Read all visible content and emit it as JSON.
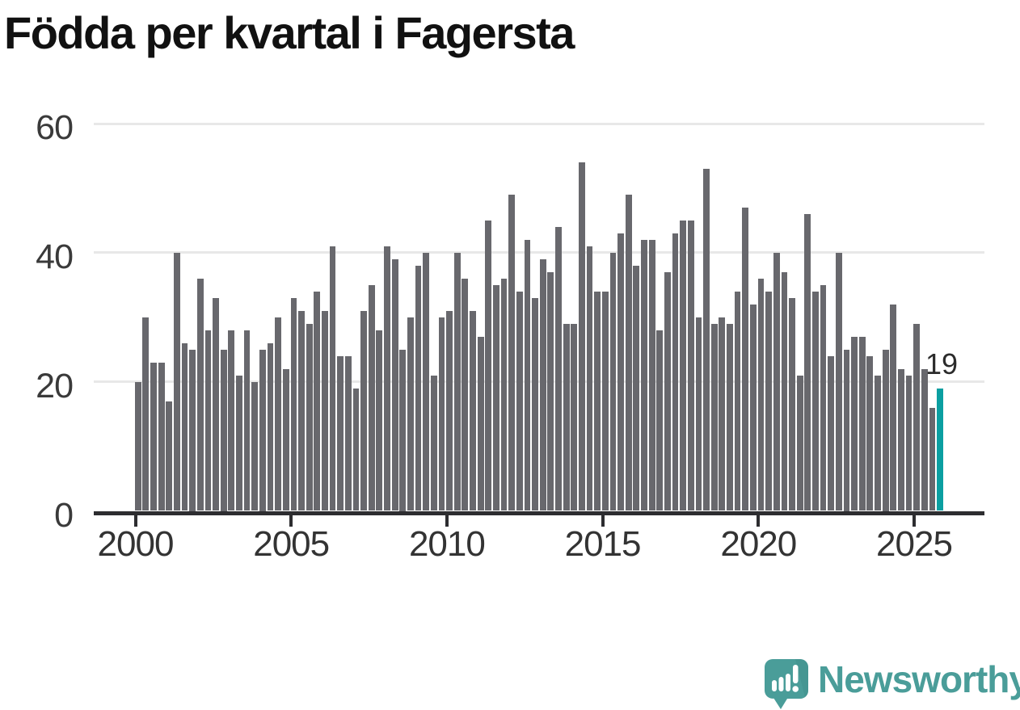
{
  "chart_data": {
    "type": "bar",
    "title": "Födda per kvartal i Fagersta",
    "xlabel": "",
    "ylabel": "",
    "ylim": [
      0,
      60
    ],
    "y_ticks": [
      0,
      20,
      40,
      60
    ],
    "x_ticks": [
      "2000",
      "2005",
      "2010",
      "2015",
      "2020",
      "2025"
    ],
    "grid": "horizontal",
    "legend": "none",
    "categories": [
      "2000Q1",
      "2000Q2",
      "2000Q3",
      "2000Q4",
      "2001Q1",
      "2001Q2",
      "2001Q3",
      "2001Q4",
      "2002Q1",
      "2002Q2",
      "2002Q3",
      "2002Q4",
      "2003Q1",
      "2003Q2",
      "2003Q3",
      "2003Q4",
      "2004Q1",
      "2004Q2",
      "2004Q3",
      "2004Q4",
      "2005Q1",
      "2005Q2",
      "2005Q3",
      "2005Q4",
      "2006Q1",
      "2006Q2",
      "2006Q3",
      "2006Q4",
      "2007Q1",
      "2007Q2",
      "2007Q3",
      "2007Q4",
      "2008Q1",
      "2008Q2",
      "2008Q3",
      "2008Q4",
      "2009Q1",
      "2009Q2",
      "2009Q3",
      "2009Q4",
      "2010Q1",
      "2010Q2",
      "2010Q3",
      "2010Q4",
      "2011Q1",
      "2011Q2",
      "2011Q3",
      "2011Q4",
      "2012Q1",
      "2012Q2",
      "2012Q3",
      "2012Q4",
      "2013Q1",
      "2013Q2",
      "2013Q3",
      "2013Q4",
      "2014Q1",
      "2014Q2",
      "2014Q3",
      "2014Q4",
      "2015Q1",
      "2015Q2",
      "2015Q3",
      "2015Q4",
      "2016Q1",
      "2016Q2",
      "2016Q3",
      "2016Q4",
      "2017Q1",
      "2017Q2",
      "2017Q3",
      "2017Q4",
      "2018Q1",
      "2018Q2",
      "2018Q3",
      "2018Q4",
      "2019Q1",
      "2019Q2",
      "2019Q3",
      "2019Q4",
      "2020Q1",
      "2020Q2",
      "2020Q3",
      "2020Q4",
      "2021Q1",
      "2021Q2",
      "2021Q3",
      "2021Q4",
      "2022Q1",
      "2022Q2",
      "2022Q3",
      "2022Q4",
      "2023Q1",
      "2023Q2",
      "2023Q3",
      "2023Q4",
      "2024Q1",
      "2024Q2",
      "2024Q3",
      "2024Q4",
      "2025Q1",
      "2025Q2",
      "2025Q3",
      "2025Q4"
    ],
    "values": [
      20,
      30,
      23,
      23,
      17,
      40,
      26,
      25,
      36,
      28,
      33,
      25,
      28,
      21,
      28,
      20,
      25,
      26,
      30,
      22,
      33,
      31,
      29,
      34,
      31,
      41,
      24,
      24,
      19,
      31,
      35,
      28,
      41,
      39,
      25,
      30,
      38,
      40,
      21,
      30,
      31,
      40,
      36,
      31,
      27,
      45,
      35,
      36,
      49,
      34,
      42,
      33,
      39,
      37,
      44,
      29,
      29,
      54,
      41,
      34,
      34,
      40,
      43,
      49,
      38,
      42,
      42,
      28,
      37,
      43,
      45,
      45,
      30,
      53,
      29,
      30,
      29,
      34,
      47,
      32,
      36,
      34,
      40,
      37,
      33,
      21,
      46,
      34,
      35,
      24,
      40,
      25,
      27,
      27,
      24,
      21,
      25,
      32,
      22,
      21,
      29,
      22,
      16,
      19
    ],
    "highlight_index": 103,
    "annotation": {
      "text": "19",
      "target": "2025Q4"
    },
    "colors": {
      "bar": "#68686d",
      "highlight": "#0b9fa1",
      "grid": "#e8e8e8",
      "axis": "#2d2d30",
      "tick_label": "#333333",
      "title": "#111111"
    }
  },
  "footer": {
    "brand": "Newsworthy",
    "logo_color": "#4a9d99"
  }
}
